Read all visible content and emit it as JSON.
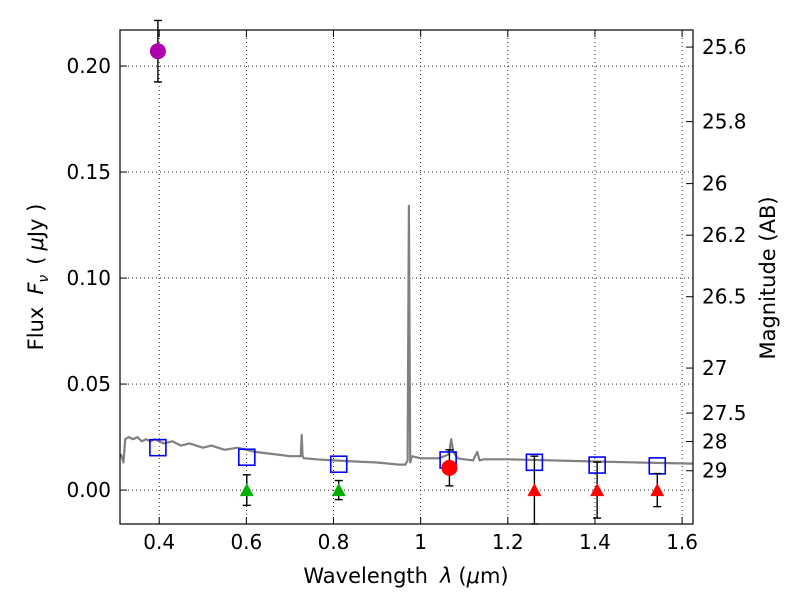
{
  "chart_data": {
    "type": "scatter",
    "title": "",
    "xlabel_text": "Wavelength",
    "xlabel_sym": "λ",
    "xlabel_unit_open": "(",
    "xlabel_unit_mu": "μ",
    "xlabel_unit_close": "m)",
    "ylabel_text": "Flux",
    "ylabel_sym": "F",
    "ylabel_sub": "ν",
    "ylabel_unit_open": "(",
    "ylabel_unit_mu": "μ",
    "ylabel_unit_close": "Jy )",
    "y2label": "Magnitude (AB)",
    "xlim": [
      0.31,
      1.625
    ],
    "ylim": [
      -0.016,
      0.217
    ],
    "grid": true,
    "x_ticks": [
      0.4,
      0.6,
      0.8,
      1.0,
      1.2,
      1.4,
      1.6
    ],
    "x_tick_labels": [
      "0.4",
      "0.6",
      "0.8",
      "1",
      "1.2",
      "1.4",
      "1.6"
    ],
    "y_ticks": [
      0.0,
      0.05,
      0.1,
      0.15,
      0.2
    ],
    "y_tick_labels": [
      "0.00",
      "0.05",
      "0.10",
      "0.15",
      "0.20"
    ],
    "mag_ticks": [
      {
        "label": "25.6",
        "value": 25.6
      },
      {
        "label": "25.8",
        "value": 25.8
      },
      {
        "label": "26",
        "value": 26.0
      },
      {
        "label": "26.2",
        "value": 26.2
      },
      {
        "label": "26.5",
        "value": 26.5
      },
      {
        "label": "27",
        "value": 27.0
      },
      {
        "label": "27.5",
        "value": 27.5
      },
      {
        "label": "28",
        "value": 28.0
      },
      {
        "label": "29",
        "value": 29.0
      }
    ],
    "model_spectrum": {
      "name": "model SED",
      "color": "#808080",
      "x": [
        0.312,
        0.318,
        0.322,
        0.33,
        0.34,
        0.35,
        0.36,
        0.37,
        0.38,
        0.39,
        0.41,
        0.43,
        0.45,
        0.47,
        0.5,
        0.52,
        0.55,
        0.58,
        0.62,
        0.66,
        0.7,
        0.725,
        0.727,
        0.729,
        0.732,
        0.735,
        0.76,
        0.8,
        0.85,
        0.9,
        0.95,
        0.965,
        0.97,
        0.973,
        0.976,
        0.98,
        1.0,
        1.04,
        1.055,
        1.065,
        1.07,
        1.075,
        1.085,
        1.1,
        1.12,
        1.13,
        1.135,
        1.145,
        1.2,
        1.3,
        1.4,
        1.5,
        1.625
      ],
      "y": [
        0.017,
        0.013,
        0.024,
        0.025,
        0.024,
        0.025,
        0.023,
        0.024,
        0.023,
        0.024,
        0.022,
        0.023,
        0.021,
        0.022,
        0.02,
        0.021,
        0.019,
        0.02,
        0.018,
        0.017,
        0.016,
        0.016,
        0.026,
        0.016,
        0.015,
        0.015,
        0.0145,
        0.014,
        0.0135,
        0.013,
        0.012,
        0.012,
        0.014,
        0.134,
        0.013,
        0.016,
        0.015,
        0.015,
        0.016,
        0.017,
        0.024,
        0.018,
        0.015,
        0.0145,
        0.014,
        0.018,
        0.014,
        0.0145,
        0.0145,
        0.014,
        0.0135,
        0.013,
        0.0125
      ]
    },
    "model_bands": {
      "name": "model photometry",
      "color": "#0000ff",
      "x": [
        0.397,
        0.601,
        0.812,
        1.063,
        1.261,
        1.405,
        1.543
      ],
      "y": [
        0.02,
        0.0155,
        0.0122,
        0.0142,
        0.0131,
        0.0118,
        0.0114
      ]
    },
    "observed": [
      {
        "name": "detection (violet)",
        "color": "#b000b0",
        "shape": "circle",
        "x": [
          0.397
        ],
        "y": [
          0.207
        ],
        "err": [
          0.0145
        ]
      },
      {
        "name": "detection (red)",
        "color": "#ff0000",
        "shape": "circle",
        "x": [
          1.066
        ],
        "y": [
          0.0105
        ],
        "err": [
          0.0085
        ]
      },
      {
        "name": "upper limits (green)",
        "color": "#00b000",
        "shape": "triangle",
        "x": [
          0.601,
          0.812
        ],
        "y": [
          0.0,
          0.0
        ],
        "err": [
          0.0072,
          0.0045
        ]
      },
      {
        "name": "upper limits (red)",
        "color": "#ff0000",
        "shape": "triangle",
        "x": [
          1.261,
          1.405,
          1.543
        ],
        "y": [
          0.0,
          0.0,
          0.0
        ],
        "err": [
          0.016,
          0.0132,
          0.0078
        ]
      }
    ]
  }
}
